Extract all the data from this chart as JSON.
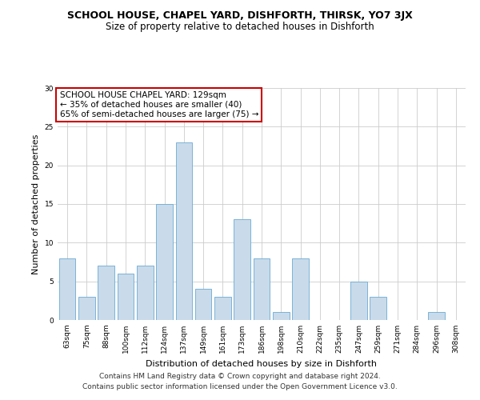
{
  "title": "SCHOOL HOUSE, CHAPEL YARD, DISHFORTH, THIRSK, YO7 3JX",
  "subtitle": "Size of property relative to detached houses in Dishforth",
  "xlabel": "Distribution of detached houses by size in Dishforth",
  "ylabel": "Number of detached properties",
  "categories": [
    "63sqm",
    "75sqm",
    "88sqm",
    "100sqm",
    "112sqm",
    "124sqm",
    "137sqm",
    "149sqm",
    "161sqm",
    "173sqm",
    "186sqm",
    "198sqm",
    "210sqm",
    "222sqm",
    "235sqm",
    "247sqm",
    "259sqm",
    "271sqm",
    "284sqm",
    "296sqm",
    "308sqm"
  ],
  "values": [
    8,
    3,
    7,
    6,
    7,
    15,
    23,
    4,
    3,
    13,
    8,
    1,
    8,
    0,
    0,
    5,
    3,
    0,
    0,
    1,
    0
  ],
  "bar_color": "#c9daea",
  "bar_edge_color": "#6aaad4",
  "ylim": [
    0,
    30
  ],
  "yticks": [
    0,
    5,
    10,
    15,
    20,
    25,
    30
  ],
  "annotation_title": "SCHOOL HOUSE CHAPEL YARD: 129sqm",
  "annotation_line1": "← 35% of detached houses are smaller (40)",
  "annotation_line2": "65% of semi-detached houses are larger (75) →",
  "footer1": "Contains HM Land Registry data © Crown copyright and database right 2024.",
  "footer2": "Contains public sector information licensed under the Open Government Licence v3.0.",
  "background_color": "#ffffff",
  "plot_background_color": "#ffffff",
  "grid_color": "#cccccc",
  "annotation_box_color": "#ffffff",
  "annotation_box_edge": "#cc0000",
  "title_fontsize": 9,
  "subtitle_fontsize": 8.5,
  "axis_label_fontsize": 8,
  "tick_fontsize": 6.5,
  "annotation_fontsize": 7.5,
  "footer_fontsize": 6.5
}
